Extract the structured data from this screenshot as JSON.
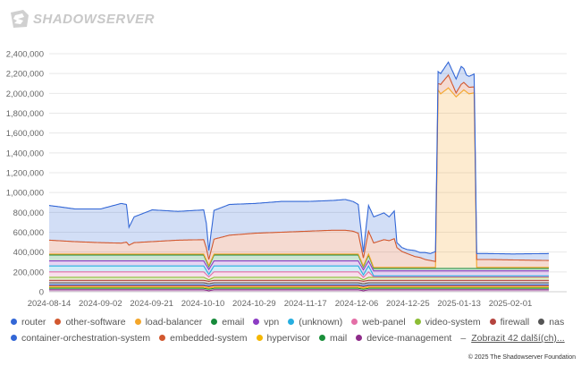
{
  "brand": {
    "name": "SHADOWSERVER",
    "logo_icon": "shadowserver-logo-icon"
  },
  "chart_data": {
    "type": "area",
    "stacked": true,
    "title": "",
    "xlabel": "",
    "ylabel": "",
    "ylim": [
      0,
      2400000
    ],
    "y_ticks": [
      0,
      200000,
      400000,
      600000,
      800000,
      1000000,
      1200000,
      1400000,
      1600000,
      1800000,
      2000000,
      2200000,
      2400000
    ],
    "y_tick_labels": [
      "0",
      "200,000",
      "400,000",
      "600,000",
      "800,000",
      "1,000,000",
      "1,200,000",
      "1,400,000",
      "1,600,000",
      "1,800,000",
      "2,000,000",
      "2,200,000",
      "2,400,000"
    ],
    "x_tick_labels": [
      "2024-08-14",
      "2024-09-02",
      "2024-09-21",
      "2024-10-10",
      "2024-10-29",
      "2024-11-17",
      "2024-12-06",
      "2024-12-25",
      "2025-01-13",
      "2025-02-01"
    ],
    "x_range_days": [
      0,
      194
    ],
    "grid": true,
    "legend_position": "bottom",
    "series": [
      {
        "name": "device-management",
        "color": "#8e2c8a",
        "pts": [
          [
            0,
            20000
          ],
          [
            60,
            20000
          ],
          [
            62,
            10000
          ],
          [
            64,
            20000
          ],
          [
            120,
            20000
          ],
          [
            122,
            10000
          ],
          [
            124,
            20000
          ],
          [
            194,
            20000
          ]
        ]
      },
      {
        "name": "mail",
        "color": "#1a8f3a",
        "pts": [
          [
            0,
            15000
          ],
          [
            194,
            15000
          ]
        ]
      },
      {
        "name": "hypervisor",
        "color": "#f5b700",
        "pts": [
          [
            0,
            10000
          ],
          [
            194,
            10000
          ]
        ]
      },
      {
        "name": "embedded-system",
        "color": "#d2582f",
        "pts": [
          [
            0,
            15000
          ],
          [
            194,
            15000
          ]
        ]
      },
      {
        "name": "container-orchestration-system",
        "color": "#3367d6",
        "pts": [
          [
            0,
            10000
          ],
          [
            194,
            10000
          ]
        ]
      },
      {
        "name": "nas",
        "color": "#555555",
        "pts": [
          [
            0,
            20000
          ],
          [
            194,
            20000
          ]
        ]
      },
      {
        "name": "firewall",
        "color": "#b5443f",
        "pts": [
          [
            0,
            25000
          ],
          [
            194,
            25000
          ]
        ]
      },
      {
        "name": "video-system",
        "color": "#8cbd35",
        "pts": [
          [
            0,
            30000
          ],
          [
            60,
            30000
          ],
          [
            62,
            15000
          ],
          [
            64,
            30000
          ],
          [
            120,
            30000
          ],
          [
            122,
            15000
          ],
          [
            124,
            30000
          ],
          [
            194,
            30000
          ]
        ]
      },
      {
        "name": "web-panel",
        "color": "#e46fa7",
        "pts": [
          [
            0,
            55000
          ],
          [
            60,
            55000
          ],
          [
            62,
            30000
          ],
          [
            64,
            55000
          ],
          [
            120,
            55000
          ],
          [
            122,
            25000
          ],
          [
            124,
            55000
          ],
          [
            126,
            5000
          ],
          [
            194,
            5000
          ]
        ]
      },
      {
        "name": "(unknown)",
        "color": "#26aee0",
        "pts": [
          [
            0,
            60000
          ],
          [
            60,
            60000
          ],
          [
            62,
            25000
          ],
          [
            64,
            60000
          ],
          [
            120,
            60000
          ],
          [
            122,
            25000
          ],
          [
            124,
            60000
          ],
          [
            126,
            10000
          ],
          [
            194,
            10000
          ]
        ]
      },
      {
        "name": "vpn",
        "color": "#8c3cc4",
        "pts": [
          [
            0,
            50000
          ],
          [
            194,
            50000
          ]
        ]
      },
      {
        "name": "email",
        "color": "#178a3b",
        "pts": [
          [
            0,
            60000
          ],
          [
            60,
            60000
          ],
          [
            62,
            30000
          ],
          [
            64,
            60000
          ],
          [
            120,
            60000
          ],
          [
            122,
            30000
          ],
          [
            124,
            60000
          ],
          [
            126,
            25000
          ],
          [
            194,
            25000
          ]
        ]
      },
      {
        "name": "load-balancer",
        "color": "#f4a62a",
        "pts": [
          [
            0,
            10000
          ],
          [
            110,
            10000
          ],
          [
            112,
            10000
          ],
          [
            114,
            10000
          ],
          [
            116,
            10000
          ],
          [
            126,
            10000
          ],
          [
            150,
            10000
          ],
          [
            151,
            1800000
          ],
          [
            152,
            1760000
          ],
          [
            155,
            1820000
          ],
          [
            158,
            1730000
          ],
          [
            161,
            1800000
          ],
          [
            163,
            1760000
          ],
          [
            165,
            1770000
          ],
          [
            166,
            10000
          ],
          [
            194,
            10000
          ]
        ]
      },
      {
        "name": "other-software",
        "color": "#d2582f",
        "pts": [
          [
            0,
            140000
          ],
          [
            10,
            125000
          ],
          [
            20,
            115000
          ],
          [
            28,
            110000
          ],
          [
            30,
            120000
          ],
          [
            31,
            90000
          ],
          [
            33,
            115000
          ],
          [
            50,
            140000
          ],
          [
            60,
            145000
          ],
          [
            61,
            120000
          ],
          [
            62,
            60000
          ],
          [
            64,
            150000
          ],
          [
            70,
            190000
          ],
          [
            80,
            210000
          ],
          [
            90,
            220000
          ],
          [
            100,
            230000
          ],
          [
            110,
            240000
          ],
          [
            115,
            240000
          ],
          [
            118,
            230000
          ],
          [
            120,
            210000
          ],
          [
            122,
            80000
          ],
          [
            124,
            230000
          ],
          [
            130,
            280000
          ],
          [
            132,
            270000
          ],
          [
            134,
            290000
          ],
          [
            135,
            200000
          ],
          [
            137,
            160000
          ],
          [
            139,
            140000
          ],
          [
            142,
            110000
          ],
          [
            144,
            100000
          ],
          [
            146,
            80000
          ],
          [
            150,
            60000
          ],
          [
            151,
            65000
          ],
          [
            152,
            95000
          ],
          [
            155,
            130000
          ],
          [
            158,
            40000
          ],
          [
            160,
            80000
          ],
          [
            162,
            70000
          ],
          [
            165,
            60000
          ],
          [
            166,
            80000
          ],
          [
            170,
            80000
          ],
          [
            194,
            70000
          ]
        ]
      },
      {
        "name": "router",
        "color": "#3367d6",
        "pts": [
          [
            0,
            350000
          ],
          [
            10,
            330000
          ],
          [
            20,
            340000
          ],
          [
            28,
            400000
          ],
          [
            30,
            380000
          ],
          [
            31,
            180000
          ],
          [
            33,
            260000
          ],
          [
            40,
            320000
          ],
          [
            50,
            290000
          ],
          [
            60,
            300000
          ],
          [
            61,
            250000
          ],
          [
            62,
            90000
          ],
          [
            64,
            290000
          ],
          [
            70,
            310000
          ],
          [
            80,
            300000
          ],
          [
            90,
            310000
          ],
          [
            100,
            300000
          ],
          [
            110,
            300000
          ],
          [
            115,
            310000
          ],
          [
            118,
            300000
          ],
          [
            120,
            290000
          ],
          [
            122,
            60000
          ],
          [
            124,
            260000
          ],
          [
            130,
            270000
          ],
          [
            132,
            240000
          ],
          [
            134,
            280000
          ],
          [
            135,
            50000
          ],
          [
            137,
            40000
          ],
          [
            139,
            40000
          ],
          [
            142,
            60000
          ],
          [
            144,
            50000
          ],
          [
            146,
            70000
          ],
          [
            148,
            70000
          ],
          [
            150,
            100000
          ],
          [
            151,
            120000
          ],
          [
            152,
            110000
          ],
          [
            155,
            130000
          ],
          [
            158,
            140000
          ],
          [
            160,
            180000
          ],
          [
            162,
            100000
          ],
          [
            165,
            130000
          ],
          [
            166,
            60000
          ],
          [
            170,
            60000
          ],
          [
            180,
            60000
          ],
          [
            194,
            70000
          ]
        ]
      }
    ]
  },
  "legend": {
    "items": [
      {
        "label": "router",
        "color": "#3367d6"
      },
      {
        "label": "other-software",
        "color": "#d2582f"
      },
      {
        "label": "load-balancer",
        "color": "#f4a62a"
      },
      {
        "label": "email",
        "color": "#178a3b"
      },
      {
        "label": "vpn",
        "color": "#8c3cc4"
      },
      {
        "label": "(unknown)",
        "color": "#26aee0"
      },
      {
        "label": "web-panel",
        "color": "#e46fa7"
      },
      {
        "label": "video-system",
        "color": "#8cbd35"
      },
      {
        "label": "firewall",
        "color": "#b5443f"
      },
      {
        "label": "nas",
        "color": "#555555"
      },
      {
        "label": "container-orchestration-system",
        "color": "#3367d6"
      },
      {
        "label": "embedded-system",
        "color": "#d2582f"
      },
      {
        "label": "hypervisor",
        "color": "#f5b700"
      },
      {
        "label": "mail",
        "color": "#1a8f3a"
      },
      {
        "label": "device-management",
        "color": "#8e2c8a"
      }
    ],
    "separator": "–",
    "more_link": "Zobrazit 42 další(ch)..."
  },
  "footer": {
    "copyright": "© 2025 The Shadowserver Foundation"
  }
}
